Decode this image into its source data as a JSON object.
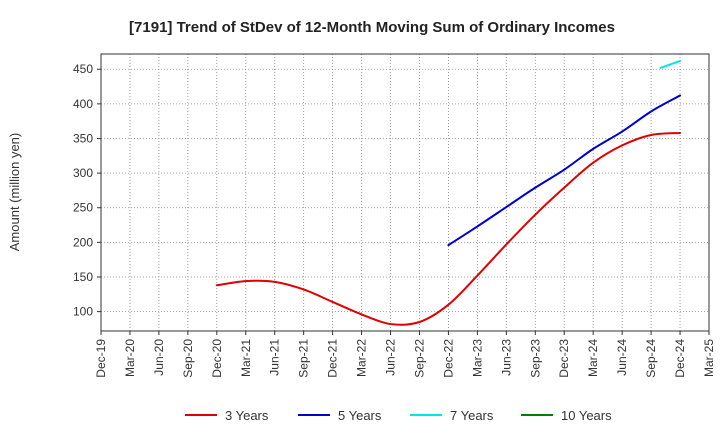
{
  "chart_data": {
    "type": "line",
    "title": "[7191]  Trend of StDev of 12-Month Moving Sum of Ordinary Incomes",
    "xlabel": "",
    "ylabel": "Amount (million yen)",
    "x_ticks": [
      "Dec-19",
      "Mar-20",
      "Jun-20",
      "Sep-20",
      "Dec-20",
      "Mar-21",
      "Jun-21",
      "Sep-21",
      "Dec-21",
      "Mar-22",
      "Jun-22",
      "Sep-22",
      "Dec-22",
      "Mar-23",
      "Jun-23",
      "Sep-23",
      "Dec-23",
      "Mar-24",
      "Jun-24",
      "Sep-24",
      "Dec-24",
      "Mar-25"
    ],
    "y_ticks": [
      100,
      150,
      200,
      250,
      300,
      350,
      400,
      450
    ],
    "ylim": [
      72,
      472
    ],
    "grid": true,
    "legend_position": "bottom",
    "series": [
      {
        "name": "3 Years",
        "color": "#e00000",
        "points": [
          [
            "Dec-20",
            138
          ],
          [
            "Mar-21",
            144
          ],
          [
            "Jun-21",
            143
          ],
          [
            "Sep-21",
            132
          ],
          [
            "Dec-21",
            114
          ],
          [
            "Mar-22",
            96
          ],
          [
            "Jun-22",
            82
          ],
          [
            "Sep-22",
            85
          ],
          [
            "Dec-22",
            110
          ],
          [
            "Mar-23",
            152
          ],
          [
            "Jun-23",
            197
          ],
          [
            "Sep-23",
            240
          ],
          [
            "Dec-23",
            279
          ],
          [
            "Mar-24",
            315
          ],
          [
            "Jun-24",
            340
          ],
          [
            "Sep-24",
            355
          ],
          [
            "Dec-24",
            358
          ]
        ]
      },
      {
        "name": "5 Years",
        "color": "#0000cc",
        "points": [
          [
            "Dec-22",
            196
          ],
          [
            "Mar-23",
            223
          ],
          [
            "Jun-23",
            251
          ],
          [
            "Sep-23",
            279
          ],
          [
            "Dec-23",
            305
          ],
          [
            "Mar-24",
            335
          ],
          [
            "Jun-24",
            360
          ],
          [
            "Sep-24",
            389
          ],
          [
            "Dec-24",
            412
          ]
        ]
      },
      {
        "name": "7 Years",
        "color": "#00e5e5",
        "points": [
          [
            "Oct-24",
            452
          ],
          [
            "Dec-24",
            462
          ]
        ]
      },
      {
        "name": "10 Years",
        "color": "#008000",
        "points": []
      }
    ]
  }
}
